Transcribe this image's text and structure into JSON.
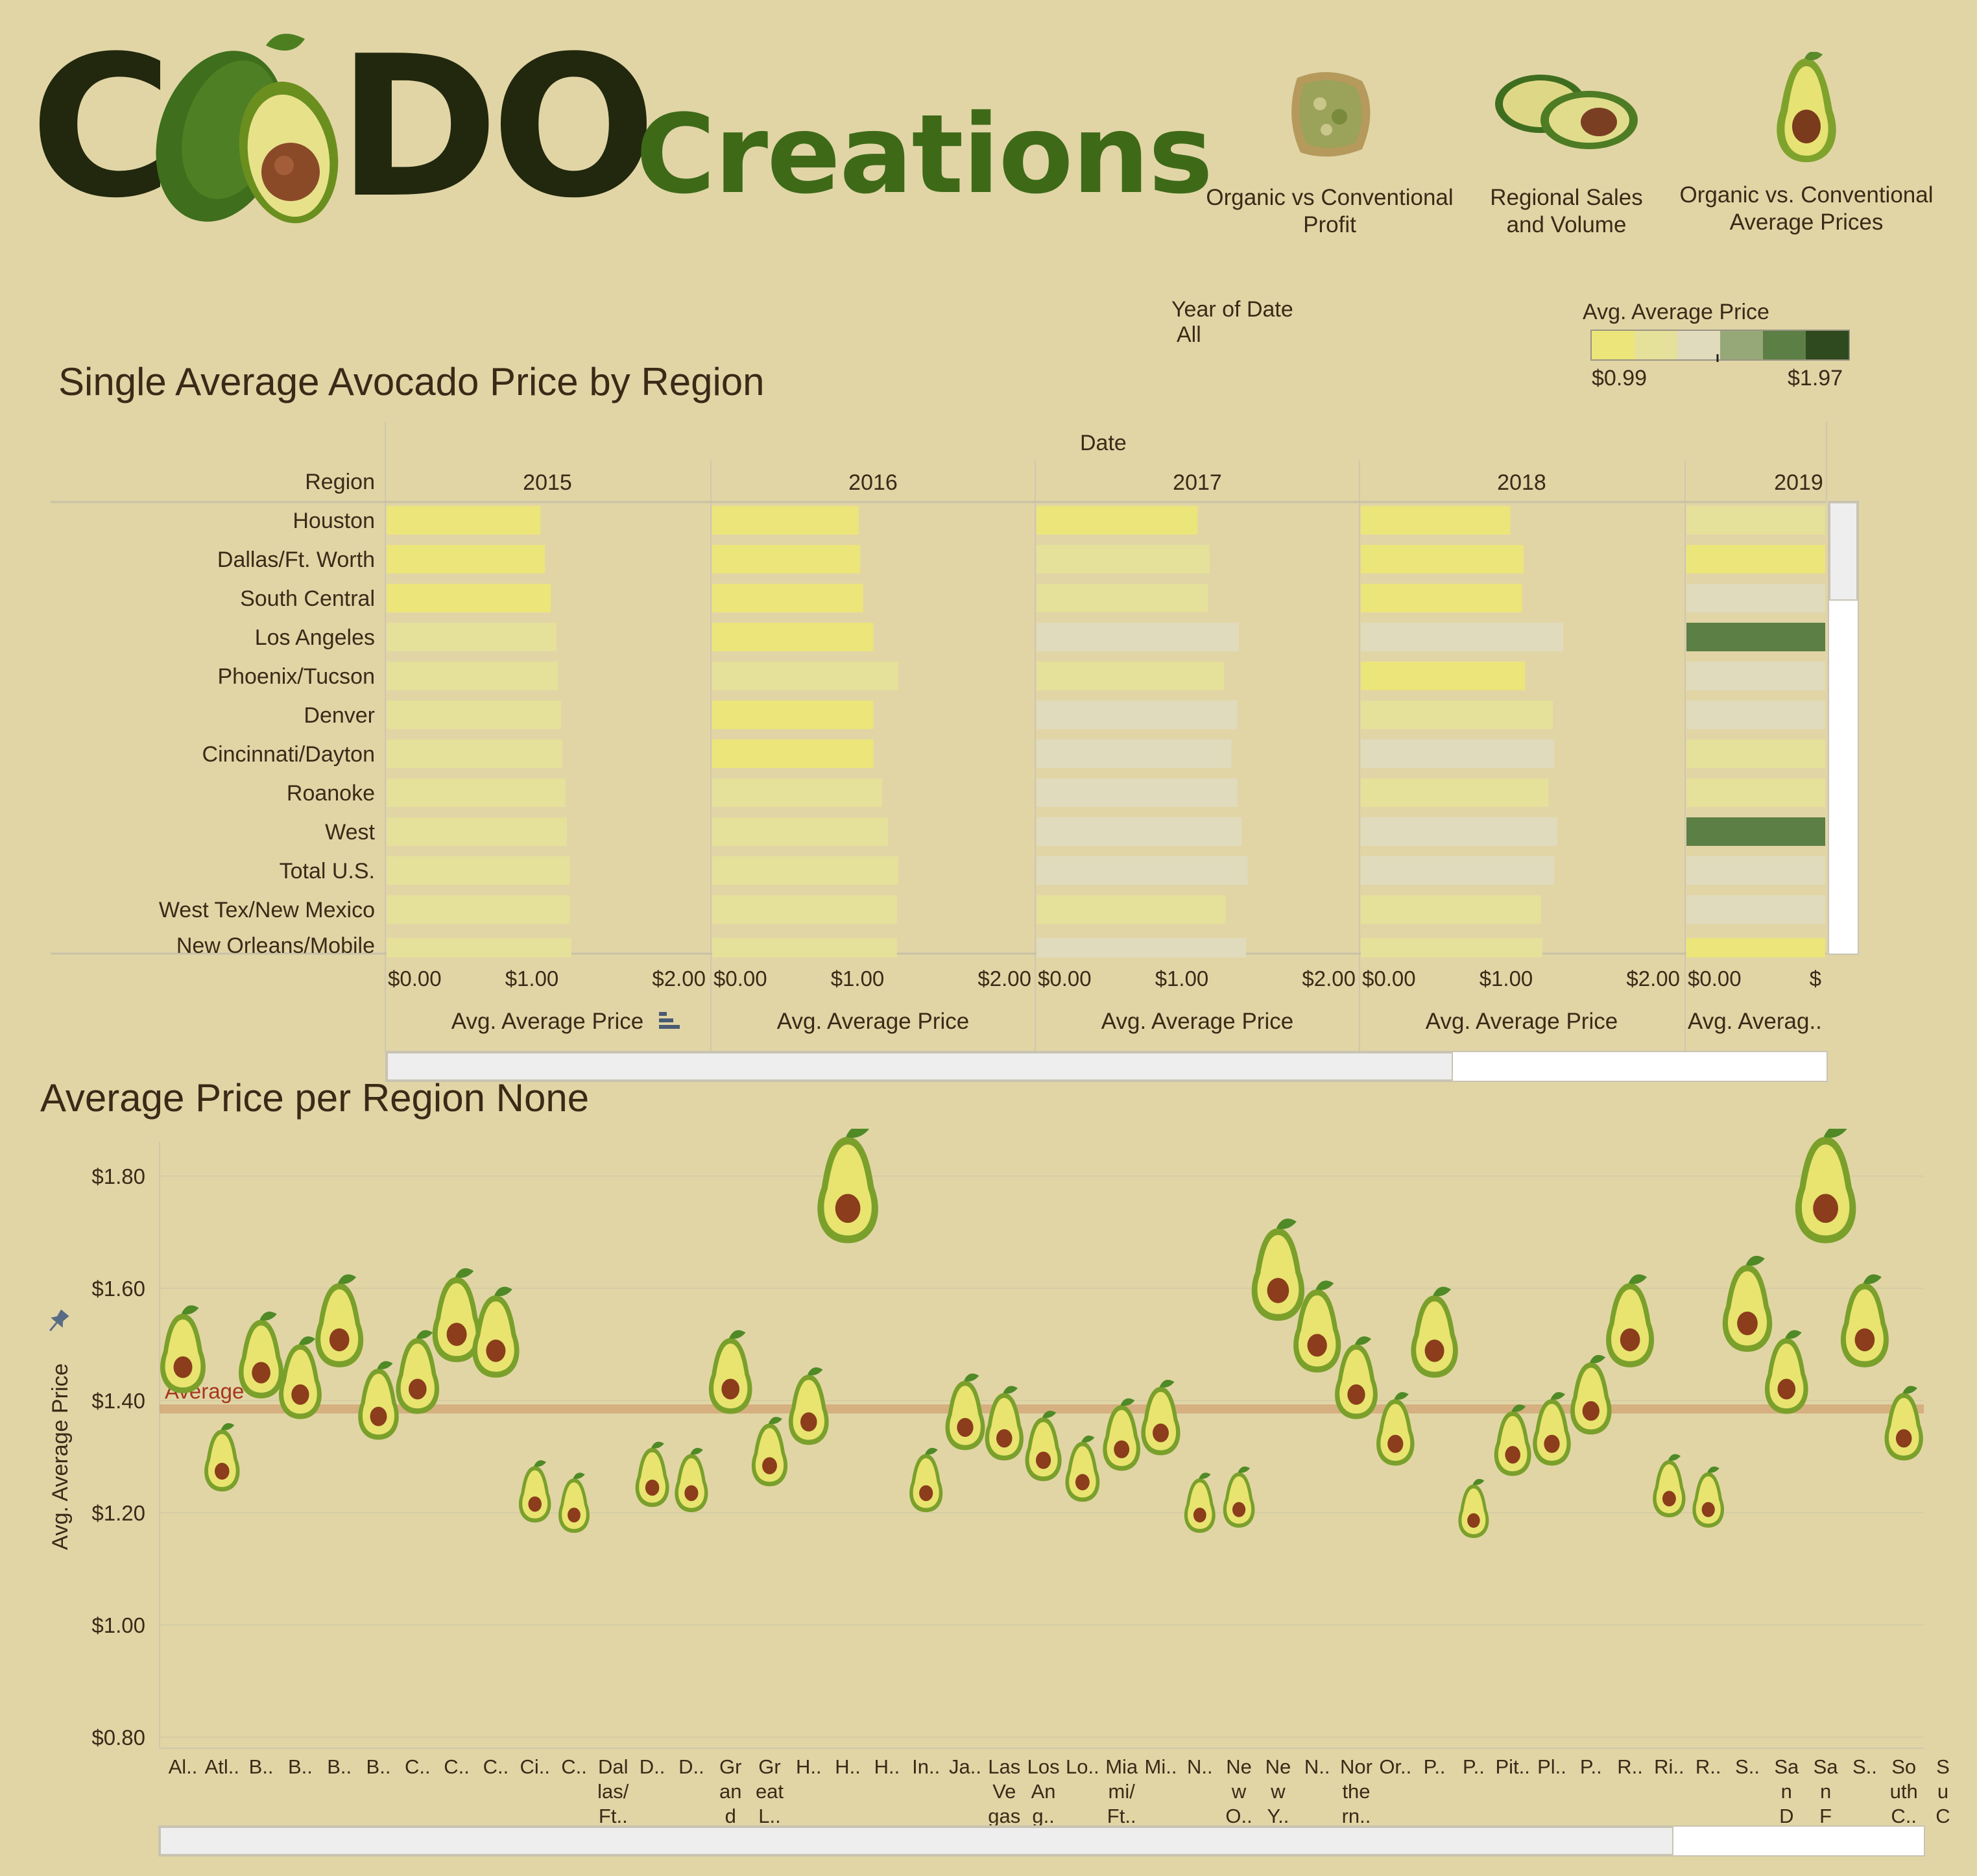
{
  "logo": {
    "main_left": "C",
    "main_right": "DO",
    "sub": "Creations"
  },
  "nav": [
    {
      "label": "Organic vs Conventional Profit",
      "line1": "Organic vs Conventional",
      "line2": "Profit",
      "icon": "avocado-toast-icon"
    },
    {
      "label": "Regional Sales and Volume",
      "line1": "Regional Sales",
      "line2": "and Volume",
      "icon": "avocado-halves-icon"
    },
    {
      "label": "Organic vs. Conventional Average Prices",
      "line1": "Organic vs. Conventional",
      "line2": "Average Prices",
      "icon": "avocado-half-icon"
    }
  ],
  "filter": {
    "label": "Year of Date",
    "value": "All"
  },
  "legend": {
    "title": "Avg. Average Price",
    "min_label": "$0.99",
    "max_label": "$1.97",
    "min": 0.99,
    "max": 1.97,
    "colors": [
      "#ece57a",
      "#e5e09a",
      "#e1dbbd",
      "#97a878",
      "#5c7f45",
      "#2f4a1e"
    ]
  },
  "colors": {
    "background": "#e1d5a6",
    "reference_line": "#d5aa7a",
    "reference_label": "#a5381c",
    "text": "#3a2a17"
  },
  "chart_data": [
    {
      "type": "bar",
      "orientation": "horizontal",
      "title": "Single Average Avocado Price by Region",
      "column_header": "Date",
      "row_header": "Region",
      "years": [
        "2015",
        "2016",
        "2017",
        "2018",
        "2019"
      ],
      "categories": [
        "Houston",
        "Dallas/Ft. Worth",
        "South Central",
        "Los Angeles",
        "Phoenix/Tucson",
        "Denver",
        "Cincinnati/Dayton",
        "Roanoke",
        "West",
        "Total U.S.",
        "West Tex/New Mexico",
        "New Orleans/Mobile"
      ],
      "series": [
        {
          "name": "2015",
          "values": [
            1.05,
            1.08,
            1.12,
            1.16,
            1.17,
            1.19,
            1.2,
            1.22,
            1.23,
            1.25,
            1.25,
            1.26
          ]
        },
        {
          "name": "2016",
          "values": [
            1.0,
            1.01,
            1.03,
            1.1,
            1.27,
            1.1,
            1.1,
            1.16,
            1.2,
            1.27,
            1.26,
            1.26
          ]
        },
        {
          "name": "2017",
          "values": [
            1.1,
            1.18,
            1.17,
            1.38,
            1.28,
            1.37,
            1.33,
            1.37,
            1.4,
            1.44,
            1.29,
            1.43
          ]
        },
        {
          "name": "2018",
          "values": [
            1.02,
            1.11,
            1.1,
            1.38,
            1.12,
            1.31,
            1.32,
            1.28,
            1.34,
            1.32,
            1.23,
            1.24
          ]
        },
        {
          "name": "2019",
          "values": [
            1.3,
            1.0,
            1.35,
            1.65,
            1.4,
            1.42,
            1.2,
            1.2,
            1.65,
            1.4,
            1.42,
            1.0
          ]
        }
      ],
      "xlabel": "Avg. Average Price",
      "xlabel_truncated": "Avg. Averag..",
      "xticks": [
        "$0.00",
        "$1.00",
        "$2.00"
      ],
      "xticks_partial": [
        "$0.00",
        "$"
      ],
      "xlim": [
        0,
        2.1
      ],
      "color_by": "value"
    },
    {
      "type": "scatter",
      "title": "Average Price per Region None",
      "ylabel": "Avg. Average Price",
      "ylim": [
        0.78,
        1.9
      ],
      "yticks": [
        "$0.80",
        "$1.00",
        "$1.20",
        "$1.40",
        "$1.60",
        "$1.80"
      ],
      "ytick_values": [
        0.8,
        1.0,
        1.2,
        1.4,
        1.6,
        1.8
      ],
      "reference_line": {
        "label": "Average",
        "value": 1.385
      },
      "categories": [
        "Al..",
        "Atl..",
        "B..",
        "B..",
        "B..",
        "B..",
        "C..",
        "C..",
        "C..",
        "Ci..",
        "C..",
        "Dal las/ Ft..",
        "D..",
        "D..",
        "Gr an d ..",
        "Gr eat L..",
        "H..",
        "H..",
        "H..",
        "In..",
        "Ja..",
        "Las Ve gas",
        "Los An g..",
        "Lo..",
        "Mia mi/ Ft..",
        "Mi..",
        "N..",
        "Ne w O..",
        "Ne w Y..",
        "N..",
        "Nor the rn..",
        "Or..",
        "P..",
        "P..",
        "Pit..",
        "Pl..",
        "P..",
        "R..",
        "Ri..",
        "R..",
        "S..",
        "Sa n D ie..",
        "Sa n F ra..",
        "S..",
        "So uth C..",
        "S u C"
      ],
      "values": [
        1.48,
        1.29,
        1.47,
        1.43,
        1.53,
        1.39,
        1.44,
        1.54,
        1.51,
        1.23,
        1.21,
        null,
        1.26,
        1.25,
        1.44,
        1.3,
        1.38,
        1.77,
        null,
        1.25,
        1.37,
        1.35,
        1.31,
        1.27,
        1.33,
        1.36,
        1.21,
        1.22,
        1.62,
        1.52,
        1.43,
        1.34,
        1.51,
        1.2,
        1.32,
        1.34,
        1.4,
        1.53,
        1.24,
        1.22,
        1.56,
        1.44,
        1.77,
        1.53,
        1.35,
        null
      ],
      "marker": "avocado"
    }
  ]
}
